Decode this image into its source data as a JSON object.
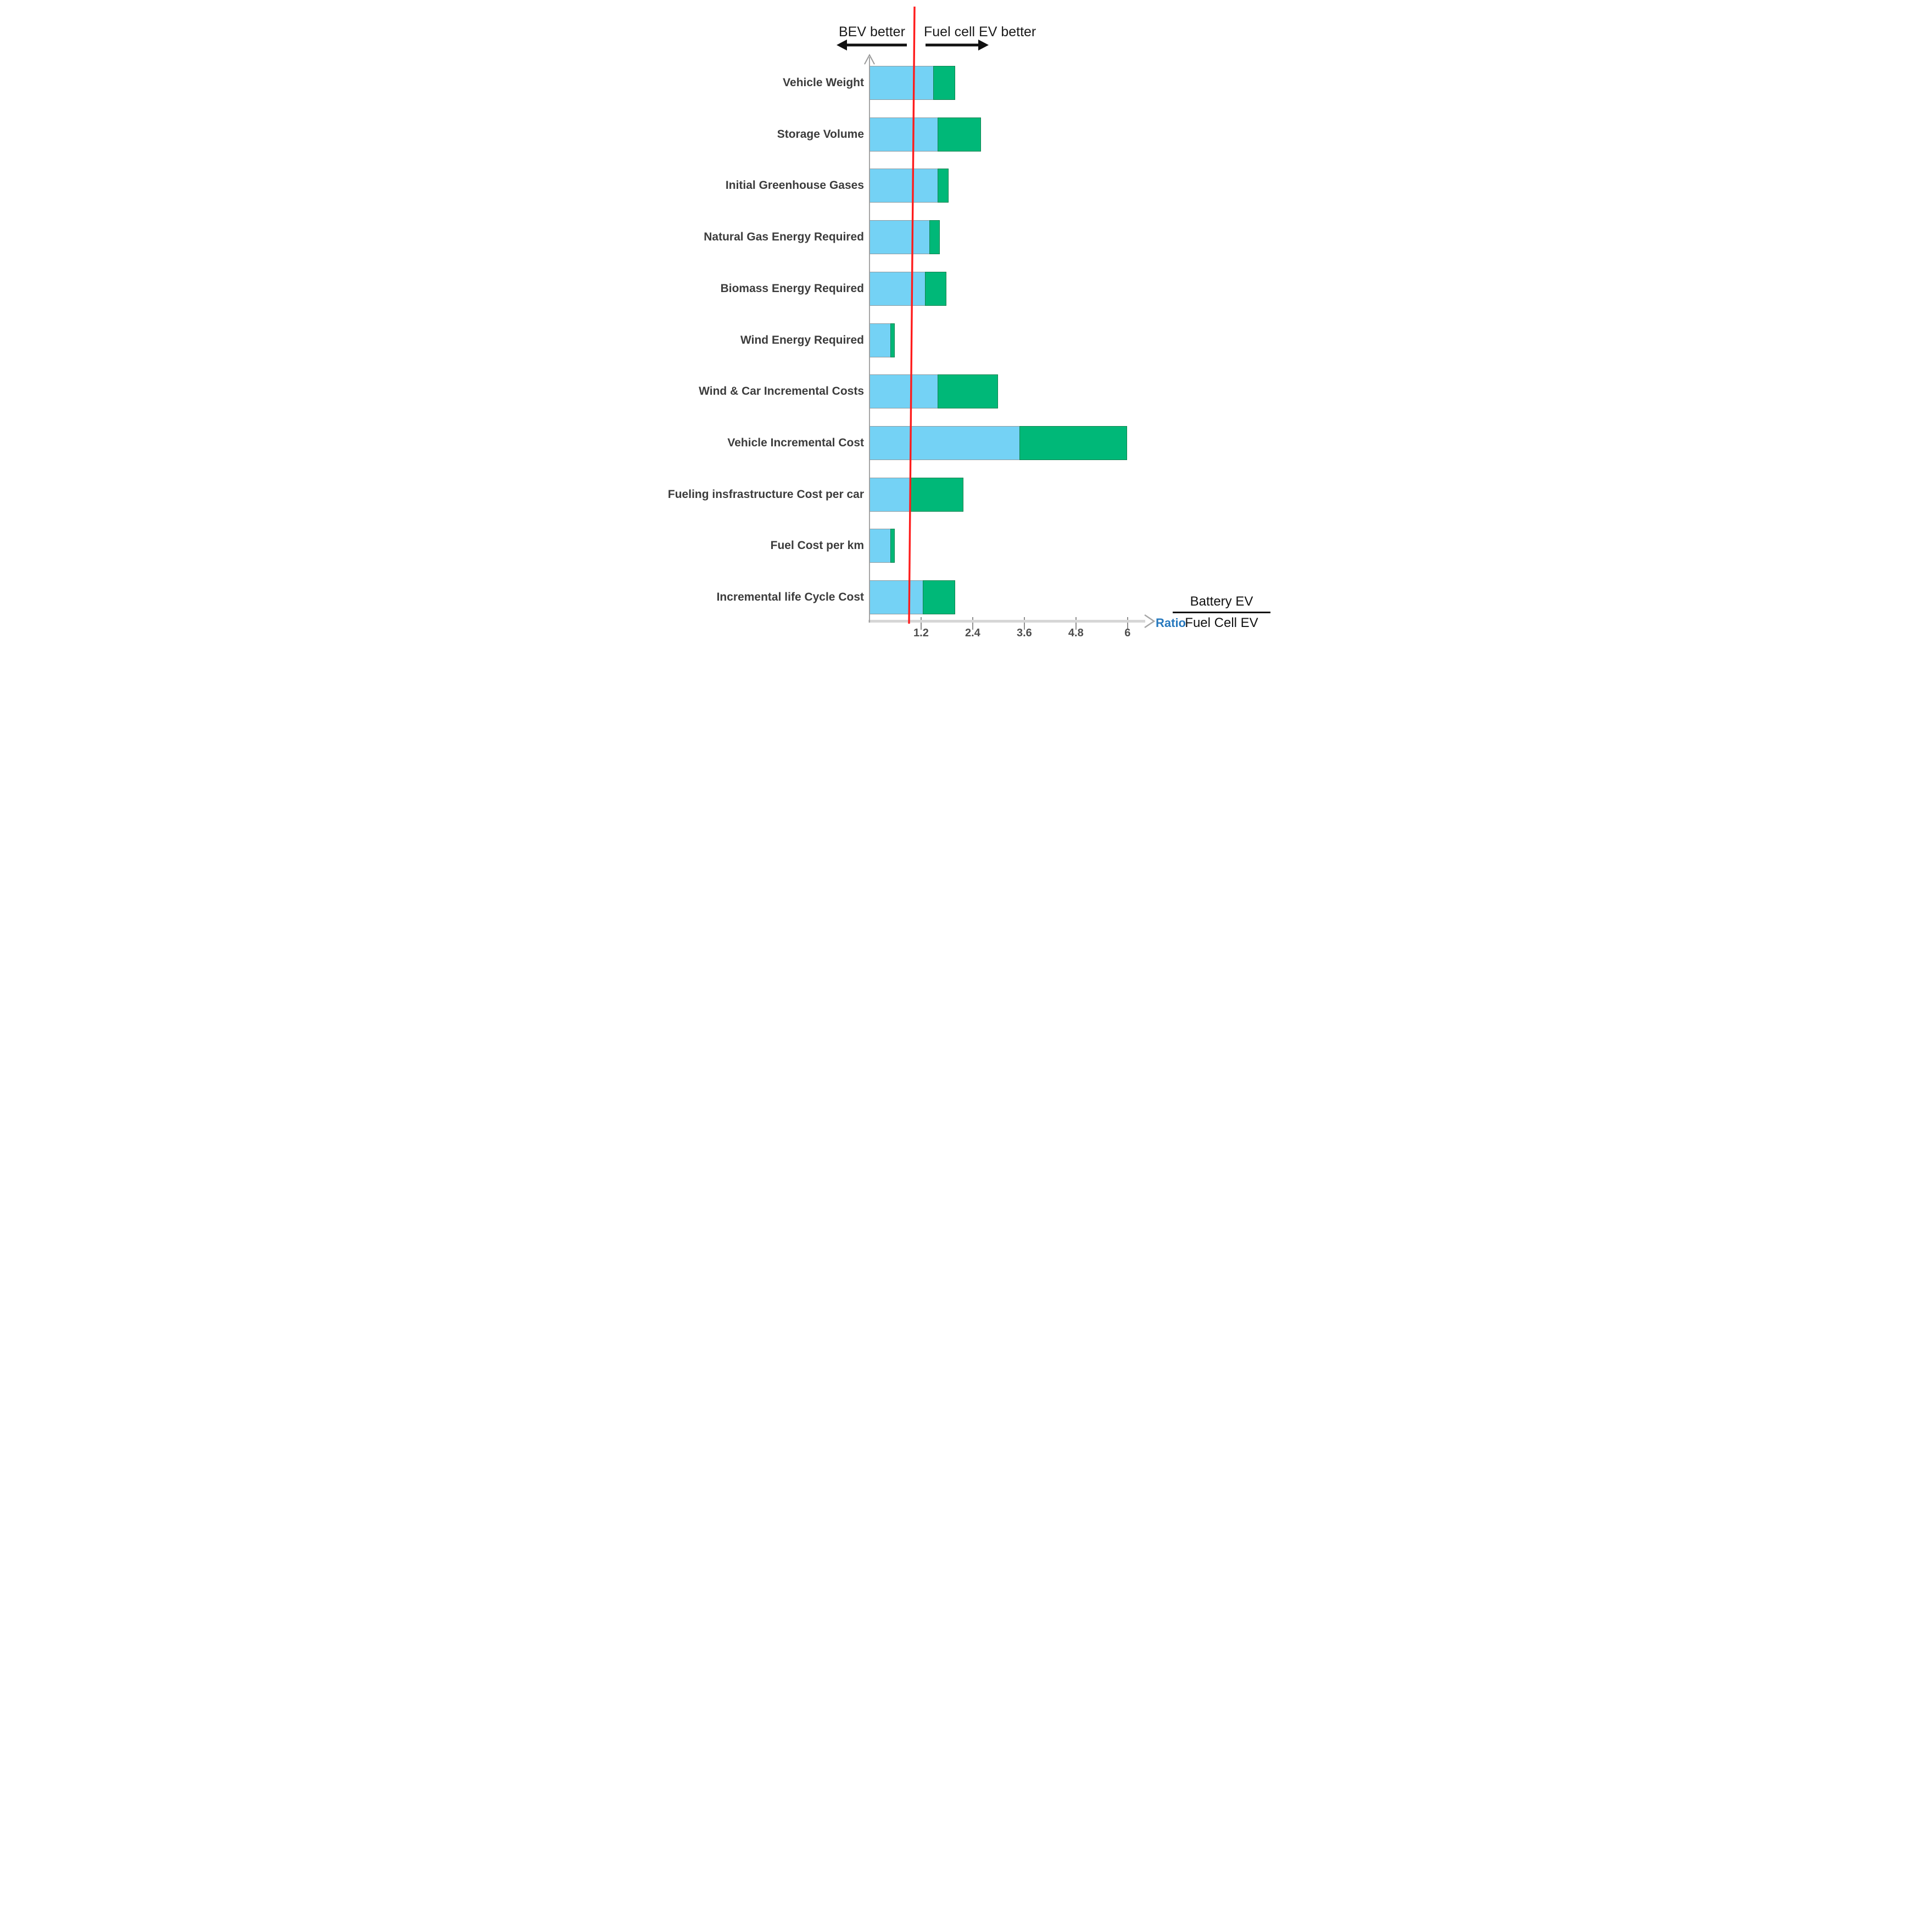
{
  "header": {
    "left_label": "BEV better",
    "right_label": "Fuel cell EV better"
  },
  "axis": {
    "label": "Ratio",
    "tick_labels": [
      "1.2",
      "2.4",
      "3.6",
      "4.8",
      "6"
    ]
  },
  "legend": {
    "numerator": "Battery EV",
    "denominator": "Fuel Cell EV"
  },
  "colors": {
    "bev_segment": "#74d2f5",
    "fcev_segment": "#00b878",
    "reference_line": "#ff1c1c",
    "ratio_label": "#2779be",
    "category_label": "#3c3c3c"
  },
  "chart_data": {
    "type": "bar",
    "orientation": "horizontal",
    "stacked": true,
    "title": "",
    "xlabel": "Ratio (Battery EV / Fuel Cell EV)",
    "ylabel": "",
    "xlim": [
      0,
      6.3
    ],
    "x_ticks": [
      1.2,
      2.4,
      3.6,
      4.8,
      6
    ],
    "reference_line_x": 1.0,
    "grid": false,
    "legend_position": "bottom-right",
    "categories": [
      "Vehicle Weight",
      "Storage Volume",
      "Initial Greenhouse Gases",
      "Natural Gas Energy Required",
      "Biomass Energy Required",
      "Wind Energy Required",
      "Wind & Car Incremental Costs",
      "Vehicle Incremental Cost",
      "Fueling insfrastructure Cost per car",
      "Fuel Cost per km",
      "Incremental life Cycle Cost"
    ],
    "series": [
      {
        "name": "ratio_low_end_blue",
        "color": "#74d2f5",
        "values": [
          1.5,
          1.6,
          1.6,
          1.4,
          1.3,
          0.5,
          1.6,
          3.5,
          0.95,
          0.5,
          1.25
        ]
      },
      {
        "name": "ratio_high_end_green",
        "color": "#00b878",
        "values": [
          2.0,
          2.6,
          1.85,
          1.65,
          1.8,
          0.6,
          3.0,
          6.0,
          2.2,
          0.6,
          2.0
        ]
      }
    ]
  }
}
